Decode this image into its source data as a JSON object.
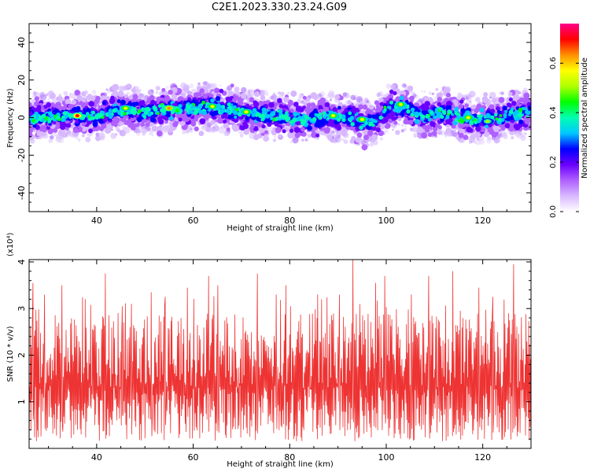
{
  "title": "C2E1.2023.330.23.24.G09",
  "colors": {
    "snr_line": "#ee3333",
    "colormap": [
      "#ffffff",
      "#d8b8ff",
      "#b060ff",
      "#6a00ff",
      "#0000ff",
      "#00c8ff",
      "#00ffb0",
      "#00ff00",
      "#b0ff00",
      "#ffff00",
      "#ff9000",
      "#ff0000",
      "#ff0088"
    ]
  },
  "chart_data": [
    {
      "type": "heatmap",
      "name": "spectrogram",
      "xlabel": "Height of straight line (km)",
      "ylabel": "Frequency (Hz)",
      "xlim": [
        26,
        130
      ],
      "ylim": [
        -50,
        50
      ],
      "xticks": [
        40,
        60,
        80,
        100,
        120
      ],
      "yticks": [
        -40,
        -20,
        0,
        20,
        40
      ],
      "colorbar": {
        "label": "Normalized spectral amplitude",
        "range": [
          0.0,
          0.76
        ],
        "ticks": [
          "0.0",
          "0.2",
          "0.4",
          "0.6"
        ],
        "tick_values": [
          0.0,
          0.2,
          0.4,
          0.6
        ]
      },
      "ridge_center_hz": [
        [
          26,
          0
        ],
        [
          30,
          0
        ],
        [
          35,
          1
        ],
        [
          40,
          1
        ],
        [
          45,
          4
        ],
        [
          50,
          3
        ],
        [
          55,
          4
        ],
        [
          60,
          5
        ],
        [
          64,
          6
        ],
        [
          68,
          4
        ],
        [
          72,
          2
        ],
        [
          76,
          1
        ],
        [
          80,
          0
        ],
        [
          84,
          -1
        ],
        [
          88,
          1
        ],
        [
          92,
          0
        ],
        [
          96,
          -3
        ],
        [
          98,
          -2
        ],
        [
          100,
          5
        ],
        [
          104,
          5
        ],
        [
          108,
          1
        ],
        [
          112,
          3
        ],
        [
          116,
          0
        ],
        [
          120,
          -1
        ],
        [
          124,
          1
        ],
        [
          128,
          2
        ],
        [
          130,
          2
        ]
      ],
      "hotspots": [
        {
          "x": 36,
          "y": 1,
          "amp": 0.72
        },
        {
          "x": 46,
          "y": 5,
          "amp": 0.6
        },
        {
          "x": 55,
          "y": 5,
          "amp": 0.65
        },
        {
          "x": 64,
          "y": 6,
          "amp": 0.6
        },
        {
          "x": 71,
          "y": 3,
          "amp": 0.55
        },
        {
          "x": 89,
          "y": 1,
          "amp": 0.6
        },
        {
          "x": 95,
          "y": -1,
          "amp": 0.58
        },
        {
          "x": 103,
          "y": 7,
          "amp": 0.55
        },
        {
          "x": 117,
          "y": 0,
          "amp": 0.6
        },
        {
          "x": 121,
          "y": -2,
          "amp": 0.5
        }
      ]
    },
    {
      "type": "line",
      "name": "snr",
      "xlabel": "Height of straight line (km)",
      "ylabel": "SNR (10 * v/v)",
      "yunit": "(x10⁴)",
      "xlim": [
        26,
        130
      ],
      "ylim": [
        0,
        4.05
      ],
      "xticks": [
        40,
        60,
        80,
        100,
        120
      ],
      "yticks": [
        1,
        2,
        3,
        4
      ],
      "series": [
        {
          "values_note": "",
          "x_start": 26,
          "x_end": 130,
          "mean": 1.6,
          "peaks": [
            {
              "x": 26.8,
              "y": 3.55
            },
            {
              "x": 29.2,
              "y": 3.3
            },
            {
              "x": 32.8,
              "y": 3.5
            },
            {
              "x": 41.8,
              "y": 3.75
            },
            {
              "x": 45.3,
              "y": 3.05
            },
            {
              "x": 47.2,
              "y": 3.1
            },
            {
              "x": 51.3,
              "y": 3.35
            },
            {
              "x": 54.2,
              "y": 3.25
            },
            {
              "x": 58.8,
              "y": 3.45
            },
            {
              "x": 63.2,
              "y": 3.7
            },
            {
              "x": 65.1,
              "y": 3.5
            },
            {
              "x": 73.3,
              "y": 3.75
            },
            {
              "x": 77.2,
              "y": 3.3
            },
            {
              "x": 79.2,
              "y": 3.5
            },
            {
              "x": 85.8,
              "y": 3.3
            },
            {
              "x": 90.3,
              "y": 3.3
            },
            {
              "x": 93.1,
              "y": 4.05
            },
            {
              "x": 97.8,
              "y": 3.55
            },
            {
              "x": 99.7,
              "y": 3.7
            },
            {
              "x": 105.2,
              "y": 3.3
            },
            {
              "x": 108.8,
              "y": 3.7
            },
            {
              "x": 113.8,
              "y": 3.8
            },
            {
              "x": 119.2,
              "y": 3.45
            },
            {
              "x": 122.1,
              "y": 3.25
            },
            {
              "x": 126.4,
              "y": 3.95
            }
          ]
        }
      ]
    }
  ]
}
